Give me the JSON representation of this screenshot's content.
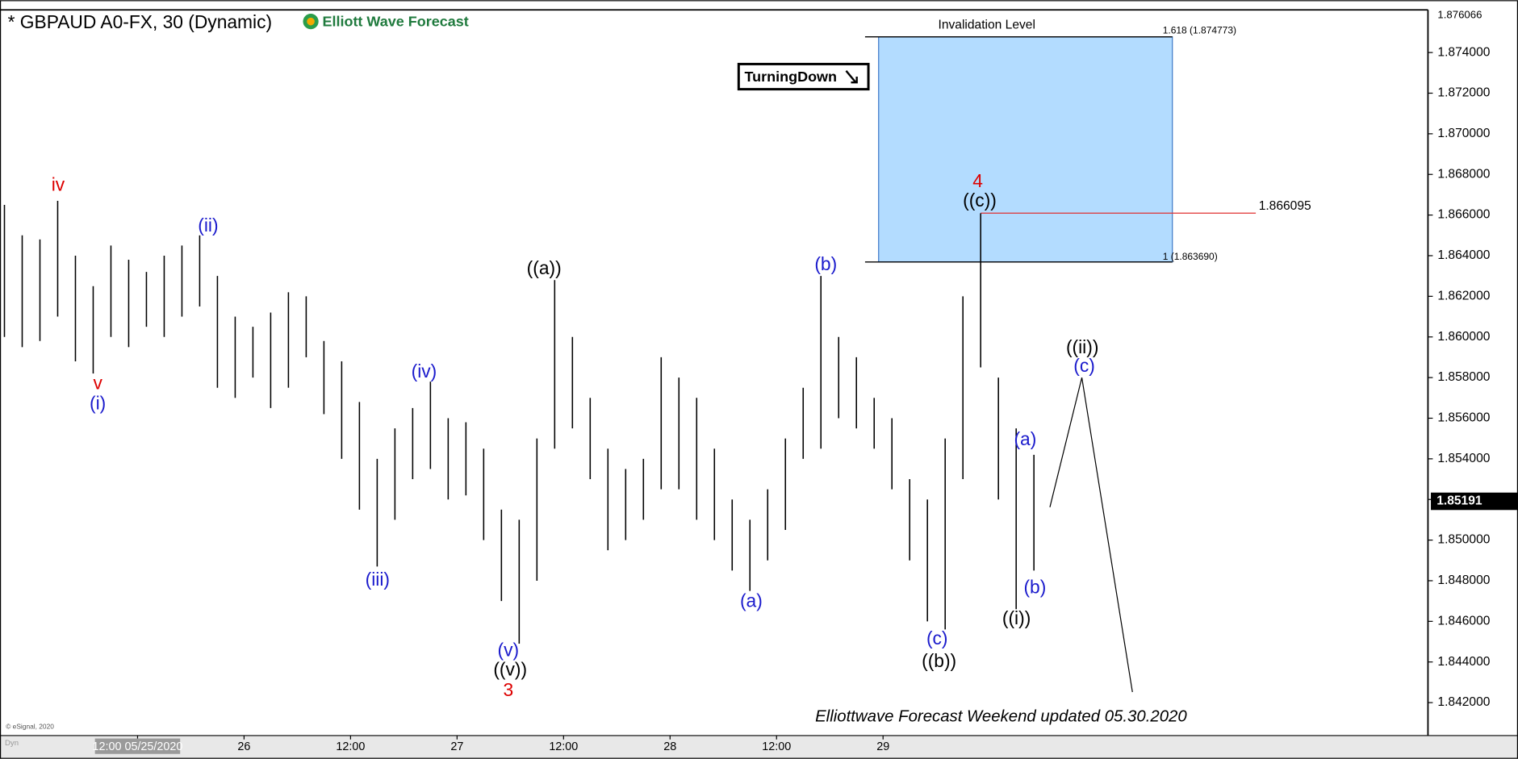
{
  "chart_data": {
    "type": "hilo",
    "title": "* GBPAUD A0-FX, 30 (Dynamic)",
    "logo": "Elliott Wave Forecast",
    "badge": "TurningDown",
    "footer": "Elliottwave Forecast Weekend updated 05.30.2020",
    "copyright": "© eSignal, 2020",
    "corner": "Dyn",
    "color": "#000000",
    "xlim": [
      -3.5,
      157.4
    ],
    "ylim": [
      1.84052,
      1.8761
    ],
    "xticks": [
      {
        "value": 12,
        "label": "12:00 05/25/2020"
      },
      {
        "value": 24,
        "label": "26"
      },
      {
        "value": 36,
        "label": "12:00"
      },
      {
        "value": 48,
        "label": "27"
      },
      {
        "value": 60,
        "label": "12:00"
      },
      {
        "value": 72,
        "label": "28"
      },
      {
        "value": 84,
        "label": "12:00"
      },
      {
        "value": 96,
        "label": "29"
      }
    ],
    "yticks": [
      {
        "value": 1.842,
        "label": "1.842000"
      },
      {
        "value": 1.844,
        "label": "1.844000"
      },
      {
        "value": 1.846,
        "label": "1.846000"
      },
      {
        "value": 1.848,
        "label": "1.848000"
      },
      {
        "value": 1.85,
        "label": "1.850000"
      },
      {
        "value": 1.852,
        "label": "1.852000"
      },
      {
        "value": 1.854,
        "label": "1.854000"
      },
      {
        "value": 1.856,
        "label": "1.856000"
      },
      {
        "value": 1.858,
        "label": "1.858000"
      },
      {
        "value": 1.86,
        "label": "1.860000"
      },
      {
        "value": 1.862,
        "label": "1.862000"
      },
      {
        "value": 1.864,
        "label": "1.864000"
      },
      {
        "value": 1.866,
        "label": "1.866000"
      },
      {
        "value": 1.868,
        "label": "1.868000"
      },
      {
        "value": 1.87,
        "label": "1.870000"
      },
      {
        "value": 1.872,
        "label": "1.872000"
      },
      {
        "value": 1.874,
        "label": "1.874000"
      }
    ],
    "top_price": 1.876066,
    "last_price": 1.85191,
    "x": [
      -3,
      -1,
      1,
      3,
      5,
      7,
      9,
      11,
      13,
      15,
      17,
      19,
      21,
      23,
      25,
      27,
      29,
      31,
      33,
      35,
      37,
      39,
      41,
      43,
      45,
      47,
      49,
      51,
      53,
      55,
      57,
      59,
      61,
      63,
      65,
      67,
      69,
      71,
      73,
      75,
      77,
      79,
      81,
      83,
      85,
      87,
      89,
      91,
      93,
      95,
      97,
      99,
      101,
      103,
      105,
      107,
      109,
      111,
      113
    ],
    "high": [
      1.8665,
      1.865,
      1.8648,
      1.8667,
      1.864,
      1.8625,
      1.8645,
      1.8638,
      1.8632,
      1.864,
      1.8645,
      1.865,
      1.863,
      1.861,
      1.8605,
      1.8612,
      1.8622,
      1.862,
      1.8598,
      1.8588,
      1.8568,
      1.854,
      1.8555,
      1.8565,
      1.8578,
      1.856,
      1.8558,
      1.8545,
      1.8515,
      1.851,
      1.855,
      1.8628,
      1.86,
      1.857,
      1.8545,
      1.8535,
      1.854,
      1.859,
      1.858,
      1.857,
      1.8545,
      1.852,
      1.851,
      1.8525,
      1.855,
      1.8575,
      1.863,
      1.86,
      1.859,
      1.857,
      1.856,
      1.853,
      1.852,
      1.855,
      1.862,
      1.86609,
      1.858,
      1.8555,
      1.8542
    ],
    "low": [
      1.86,
      1.8595,
      1.8598,
      1.861,
      1.8588,
      1.8582,
      1.86,
      1.8595,
      1.8605,
      1.86,
      1.861,
      1.8615,
      1.8575,
      1.857,
      1.858,
      1.8565,
      1.8575,
      1.859,
      1.8562,
      1.854,
      1.8515,
      1.8487,
      1.851,
      1.853,
      1.8535,
      1.852,
      1.8522,
      1.85,
      1.847,
      1.8449,
      1.848,
      1.8545,
      1.8555,
      1.853,
      1.8495,
      1.85,
      1.851,
      1.8525,
      1.8525,
      1.851,
      1.85,
      1.8485,
      1.8475,
      1.849,
      1.8505,
      1.854,
      1.8545,
      1.856,
      1.8555,
      1.8545,
      1.8525,
      1.849,
      1.846,
      1.8456,
      1.853,
      1.8585,
      1.852,
      1.8466,
      1.8485
    ],
    "projection": {
      "color": "#000000",
      "x": [
        114.8,
        118.4,
        124.1
      ],
      "values": [
        1.85162,
        1.858,
        1.84252
      ]
    },
    "zone": {
      "title": "Invalidation Level",
      "color": "#b3dcff",
      "x": [
        95.5,
        128.6
      ],
      "top": 1.874773,
      "top_label": "1.618 (1.874773)",
      "bottom": 1.86369,
      "bottom_label": "1 (1.863690)"
    },
    "level": {
      "value": 1.866095,
      "color": "#e03030",
      "x": [
        107,
        138
      ]
    },
    "annotations": [
      {
        "text": "iv",
        "color": "#dd0000"
      },
      {
        "text": "v",
        "color": "#dd0000"
      },
      {
        "text": "(i)",
        "color": "#1a1acc"
      },
      {
        "text": "(ii)",
        "color": "#1a1acc"
      },
      {
        "text": "(iii)",
        "color": "#1a1acc"
      },
      {
        "text": "(iv)",
        "color": "#1a1acc"
      },
      {
        "text": "(v)",
        "color": "#1a1acc"
      },
      {
        "text": "((v))",
        "color": "#000000"
      },
      {
        "text": "3",
        "color": "#dd0000"
      },
      {
        "text": "((a))",
        "color": "#000000"
      },
      {
        "text": "(a)",
        "color": "#1a1acc"
      },
      {
        "text": "(b)",
        "color": "#1a1acc"
      },
      {
        "text": "4",
        "color": "#dd0000"
      },
      {
        "text": "((c))",
        "color": "#000000"
      },
      {
        "text": "(c)",
        "color": "#1a1acc"
      },
      {
        "text": "((b))",
        "color": "#000000"
      },
      {
        "text": "(a)",
        "color": "#1a1acc"
      },
      {
        "text": "(b)",
        "color": "#1a1acc"
      },
      {
        "text": "((i))",
        "color": "#000000"
      },
      {
        "text": "((ii))",
        "color": "#000000"
      },
      {
        "text": "(c)",
        "color": "#1a1acc"
      }
    ]
  }
}
